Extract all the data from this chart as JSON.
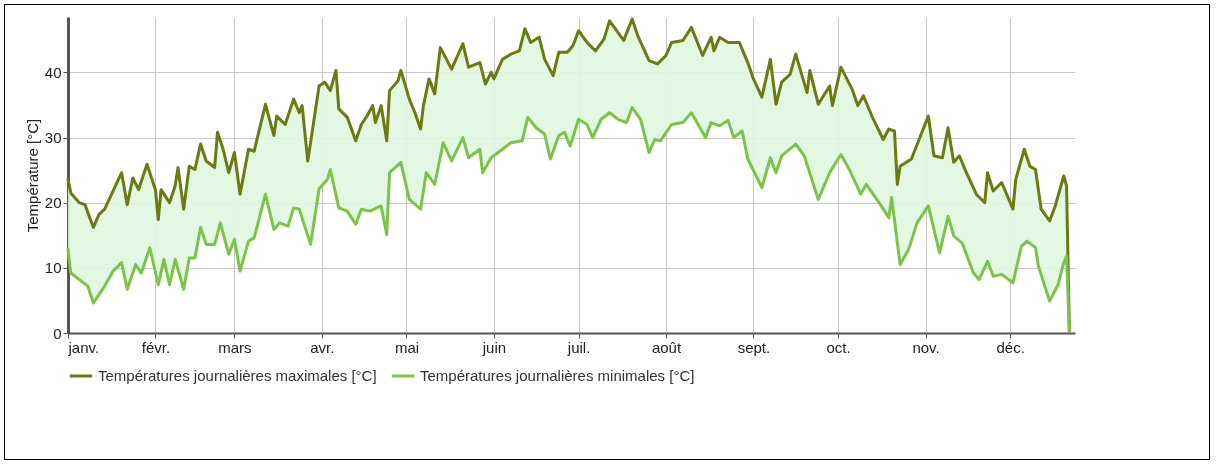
{
  "chart_data": {
    "type": "line",
    "ylabel": "Température [°C]",
    "ylim": [
      0,
      48.5
    ],
    "yticks": [
      0,
      10,
      20,
      30,
      40
    ],
    "xlim": [
      "--01-01",
      "--12-24"
    ],
    "xticks": [
      {
        "value": "--01-01",
        "label": "janv."
      },
      {
        "value": "--02-01",
        "label": "févr."
      },
      {
        "value": "--03-01",
        "label": "mars"
      },
      {
        "value": "--04-01",
        "label": "avr."
      },
      {
        "value": "--05-01",
        "label": "mai"
      },
      {
        "value": "--06-01",
        "label": "juin"
      },
      {
        "value": "--07-01",
        "label": "juil."
      },
      {
        "value": "--08-01",
        "label": "août"
      },
      {
        "value": "--09-01",
        "label": "sept."
      },
      {
        "value": "--10-01",
        "label": "oct."
      },
      {
        "value": "--11-01",
        "label": "nov."
      },
      {
        "value": "--12-01",
        "label": "déc."
      }
    ],
    "grid": true,
    "legend": "bottom",
    "line_style": "solid",
    "series": [
      {
        "name": "Températures journalières maximales [°C]",
        "color": "#6b7a12",
        "x": [
          "--01-01",
          "--01-02",
          "--01-05",
          "--01-07",
          "--01-10",
          "--01-12",
          "--01-14",
          "--01-17",
          "--01-20",
          "--01-22",
          "--01-24",
          "--01-26",
          "--01-29",
          "--02-01",
          "--02-02",
          "--02-03",
          "--02-06",
          "--02-08",
          "--02-09",
          "--02-11",
          "--02-13",
          "--02-15",
          "--02-17",
          "--02-19",
          "--02-22",
          "--02-23",
          "--02-25",
          "--02-27",
          "--03-01",
          "--03-03",
          "--03-06",
          "--03-08",
          "--03-12",
          "--03-15",
          "--03-16",
          "--03-19",
          "--03-22",
          "--03-24",
          "--03-25",
          "--03-27",
          "--03-28",
          "--03-31",
          "--04-02",
          "--04-04",
          "--04-06",
          "--04-07",
          "--04-10",
          "--04-13",
          "--04-15",
          "--04-17",
          "--04-19",
          "--04-20",
          "--04-22",
          "--04-24",
          "--04-25",
          "--04-28",
          "--04-29",
          "--05-02",
          "--05-04",
          "--05-06",
          "--05-07",
          "--05-09",
          "--05-11",
          "--05-13",
          "--05-17",
          "--05-21",
          "--05-23",
          "--05-27",
          "--05-29",
          "--05-31",
          "--06-01",
          "--06-04",
          "--06-07",
          "--06-10",
          "--06-12",
          "--06-14",
          "--06-17",
          "--06-19",
          "--06-22",
          "--06-24",
          "--06-27",
          "--06-29",
          "--07-01",
          "--07-04",
          "--07-07",
          "--07-10",
          "--07-12",
          "--07-14",
          "--07-17",
          "--07-20",
          "--07-22",
          "--07-26",
          "--07-29",
          "--08-01",
          "--08-03",
          "--08-07",
          "--08-10",
          "--08-14",
          "--08-17",
          "--08-18",
          "--08-20",
          "--08-23",
          "--08-27",
          "--08-30",
          "--09-01",
          "--09-04",
          "--09-07",
          "--09-09",
          "--09-11",
          "--09-14",
          "--09-16",
          "--09-20",
          "--09-21",
          "--09-24",
          "--09-28",
          "--09-29",
          "--10-02",
          "--10-06",
          "--10-08",
          "--10-10",
          "--10-13",
          "--10-17",
          "--10-19",
          "--10-21",
          "--10-22",
          "--10-23",
          "--10-27",
          "--11-02",
          "--11-04",
          "--11-07",
          "--11-09",
          "--11-11",
          "--11-13",
          "--11-15",
          "--11-19",
          "--11-22",
          "--11-23",
          "--11-25",
          "--11-28",
          "--12-02",
          "--12-03",
          "--12-06",
          "--12-08",
          "--12-10",
          "--12-12",
          "--12-15",
          "--12-17",
          "--12-20",
          "--12-21",
          "--12-22"
        ],
        "values": [
          23.6,
          21.5,
          20,
          19.7,
          16.2,
          18.2,
          19,
          21.8,
          24.6,
          19.7,
          23.8,
          22,
          25.9,
          22,
          17.4,
          22,
          20,
          22.6,
          25.4,
          19,
          25.6,
          25.1,
          29,
          26.4,
          25.4,
          30.8,
          28.2,
          24.6,
          27.7,
          21.3,
          28.2,
          27.9,
          35.1,
          30.3,
          33.3,
          32,
          35.9,
          33.8,
          34.9,
          26.4,
          29.2,
          37.9,
          38.5,
          37.2,
          40.3,
          34.4,
          33.1,
          29.5,
          32,
          33.3,
          34.9,
          32.3,
          34.9,
          29.5,
          37.2,
          38.7,
          40.3,
          35.9,
          33.8,
          31.3,
          34.9,
          39,
          36.7,
          43.8,
          40.5,
          44.4,
          40.8,
          41.5,
          38.2,
          40,
          39,
          42,
          42.8,
          43.3,
          46.7,
          44.6,
          45.4,
          42,
          39.5,
          43.1,
          43.1,
          44.1,
          46.4,
          44.6,
          43.3,
          45.1,
          47.9,
          46.7,
          44.9,
          48.2,
          45.6,
          41.8,
          41.3,
          42.6,
          44.6,
          44.9,
          46.9,
          42.6,
          45.4,
          43.3,
          45.4,
          44.6,
          44.6,
          41.5,
          39,
          36.2,
          42,
          35.1,
          38.5,
          39.7,
          42.8,
          36.9,
          40.3,
          35.1,
          37.9,
          34.9,
          40.8,
          37.4,
          34.9,
          36.4,
          33.3,
          29.7,
          31.3,
          31,
          22.8,
          25.6,
          26.7,
          33.3,
          27.2,
          26.9,
          31.5,
          26.2,
          27.2,
          25.1,
          21.3,
          20,
          24.6,
          21.8,
          23.1,
          19,
          23.6,
          28.2,
          25.6,
          25.1,
          19,
          17.2,
          19.5,
          24.1,
          22.6,
          0.3
        ]
      },
      {
        "name": "Températures journalières minimales [°C]",
        "color": "#7dc24a",
        "x": [
          "--01-01",
          "--01-02",
          "--01-05",
          "--01-08",
          "--01-10",
          "--01-12",
          "--01-14",
          "--01-17",
          "--01-20",
          "--01-22",
          "--01-25",
          "--01-27",
          "--01-30",
          "--02-02",
          "--02-04",
          "--02-06",
          "--02-08",
          "--02-11",
          "--02-13",
          "--02-15",
          "--02-17",
          "--02-19",
          "--02-22",
          "--02-24",
          "--02-27",
          "--03-01",
          "--03-03",
          "--03-06",
          "--03-08",
          "--03-12",
          "--03-15",
          "--03-17",
          "--03-20",
          "--03-22",
          "--03-24",
          "--03-28",
          "--03-31",
          "--04-03",
          "--04-04",
          "--04-07",
          "--04-10",
          "--04-13",
          "--04-15",
          "--04-18",
          "--04-22",
          "--04-24",
          "--04-25",
          "--04-29",
          "--05-02",
          "--05-06",
          "--05-08",
          "--05-11",
          "--05-14",
          "--05-17",
          "--05-21",
          "--05-23",
          "--05-27",
          "--05-28",
          "--05-31",
          "--06-04",
          "--06-07",
          "--06-11",
          "--06-13",
          "--06-16",
          "--06-19",
          "--06-21",
          "--06-24",
          "--06-26",
          "--06-28",
          "--07-01",
          "--07-04",
          "--07-06",
          "--07-09",
          "--07-12",
          "--07-15",
          "--07-18",
          "--07-20",
          "--07-23",
          "--07-26",
          "--07-28",
          "--07-30",
          "--08-03",
          "--08-07",
          "--08-10",
          "--08-15",
          "--08-17",
          "--08-20",
          "--08-23",
          "--08-25",
          "--08-28",
          "--08-30",
          "--09-04",
          "--09-07",
          "--09-09",
          "--09-11",
          "--09-16",
          "--09-19",
          "--09-24",
          "--09-28",
          "--10-02",
          "--10-05",
          "--10-09",
          "--10-11",
          "--10-16",
          "--10-19",
          "--10-20",
          "--10-23",
          "--10-26",
          "--10-29",
          "--11-02",
          "--11-06",
          "--11-09",
          "--11-11",
          "--11-14",
          "--11-18",
          "--11-20",
          "--11-23",
          "--11-25",
          "--11-28",
          "--12-02",
          "--12-05",
          "--12-07",
          "--12-10",
          "--12-11",
          "--12-15",
          "--12-18",
          "--12-20",
          "--12-21",
          "--12-22"
        ],
        "values": [
          12.8,
          9.2,
          8.2,
          7.2,
          4.6,
          5.9,
          7.2,
          9.5,
          10.8,
          6.7,
          10.5,
          9.2,
          13.1,
          7.4,
          11.3,
          7.4,
          11.3,
          6.7,
          11.5,
          11.5,
          16.2,
          13.6,
          13.6,
          16.9,
          12.1,
          14.4,
          9.5,
          14.1,
          14.6,
          21.3,
          15.9,
          16.9,
          16.4,
          19.2,
          19,
          13.6,
          22.1,
          23.6,
          25.1,
          19.2,
          18.7,
          16.7,
          19,
          18.7,
          19.5,
          15.1,
          24.6,
          26.2,
          20.5,
          19,
          24.6,
          22.8,
          29.2,
          26.4,
          30,
          26.9,
          28.2,
          24.6,
          26.9,
          28.2,
          29.2,
          29.5,
          33.1,
          31.5,
          30.5,
          26.7,
          30.3,
          30.8,
          28.7,
          32.8,
          32,
          30,
          32.8,
          33.8,
          32.8,
          32.3,
          34.6,
          32.8,
          27.7,
          29.7,
          29.5,
          32,
          32.3,
          33.8,
          30,
          32.3,
          31.8,
          32.6,
          30,
          31,
          26.7,
          22.3,
          26.9,
          24.6,
          27.2,
          29,
          27.2,
          20.5,
          24.6,
          27.4,
          25.1,
          21.3,
          22.8,
          19.7,
          17.7,
          20.8,
          10.5,
          12.8,
          16.9,
          19.5,
          12.3,
          17.9,
          14.9,
          13.8,
          9.2,
          8.2,
          11,
          8.7,
          9,
          7.7,
          13.3,
          14.1,
          13.1,
          10.3,
          4.9,
          7.4,
          10.8,
          11.8,
          0.3
        ]
      }
    ]
  }
}
